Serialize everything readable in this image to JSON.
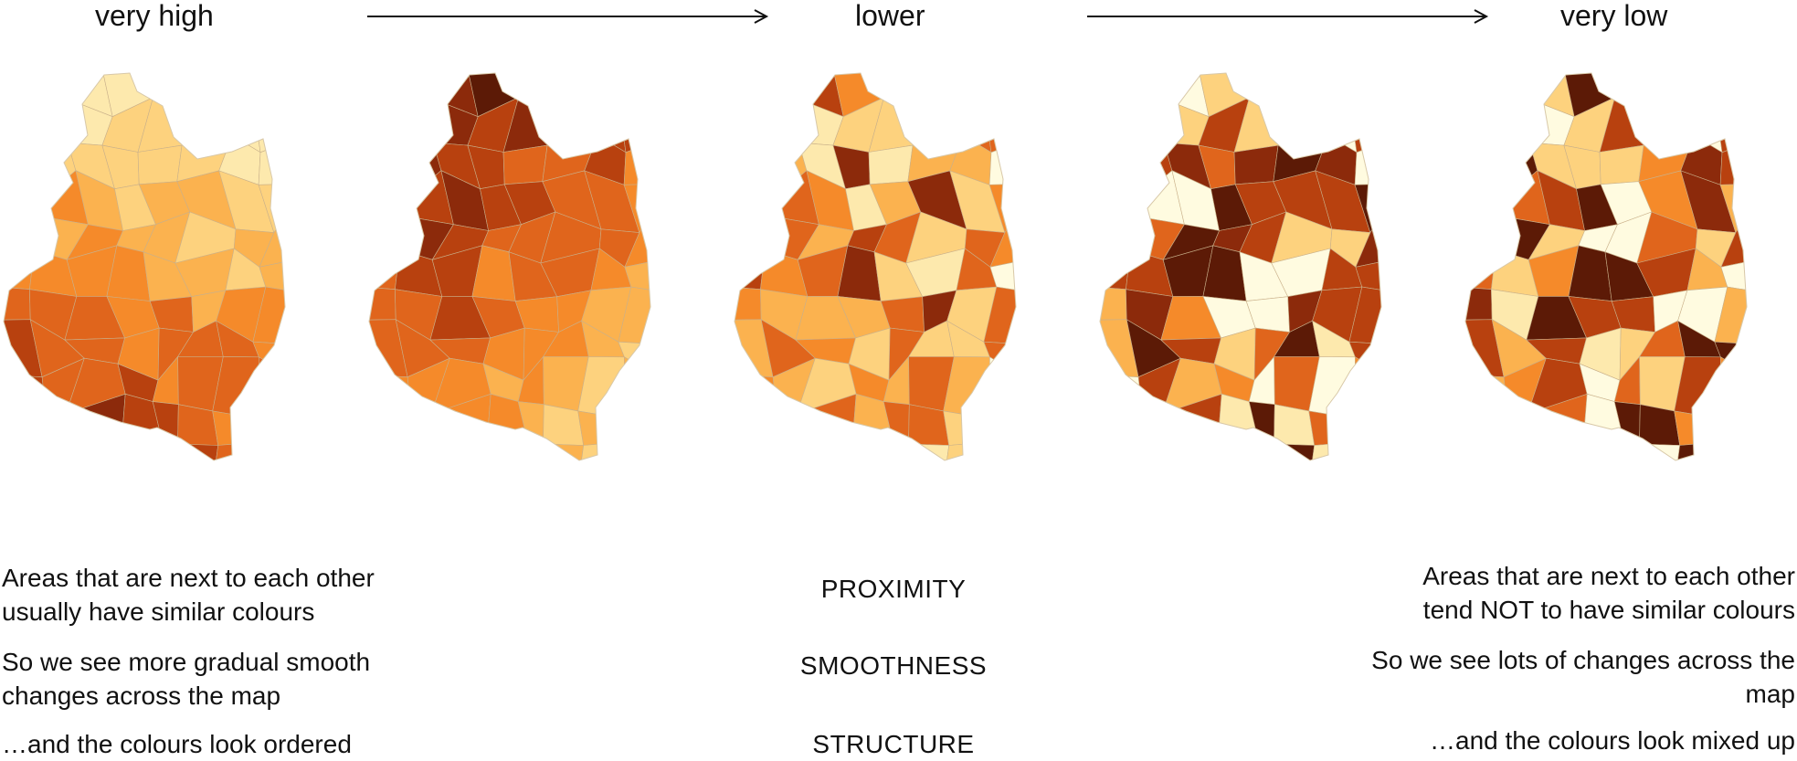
{
  "header": {
    "very_high": "very high",
    "lower": "lower",
    "very_low": "very low"
  },
  "maps": [
    {
      "name": "map-very-high",
      "palette_order": "ordered"
    },
    {
      "name": "map-high",
      "palette_order": "ordered"
    },
    {
      "name": "map-lower",
      "palette_order": "partly-mixed"
    },
    {
      "name": "map-low",
      "palette_order": "mixed"
    },
    {
      "name": "map-very-low",
      "palette_order": "mixed"
    }
  ],
  "palette": [
    "#fffbe0",
    "#fde9ad",
    "#fdd27e",
    "#fbb24f",
    "#f58a2a",
    "#e0651c",
    "#b8410f",
    "#8c2a0b",
    "#5c1a06"
  ],
  "left_text": {
    "p1": "Areas that are next to each other usually have similar colours",
    "p2": "So we see more gradual smooth changes across the map",
    "p3": "…and the colours look ordered"
  },
  "middle_text": {
    "t1": "PROXIMITY",
    "t2": "SMOOTHNESS",
    "t3": "STRUCTURE"
  },
  "right_text": {
    "p1": "Areas that are next to each other tend NOT to have similar colours",
    "p2": "So we see lots of changes across the map",
    "p3": "…and the colours look mixed up"
  }
}
